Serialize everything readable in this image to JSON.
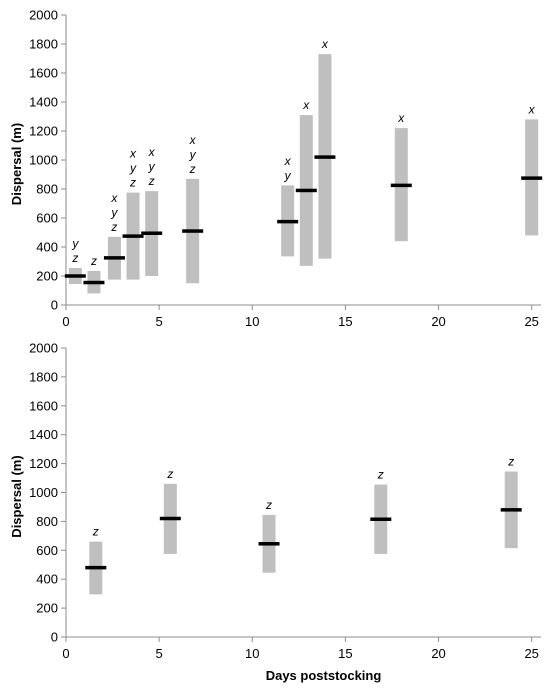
{
  "colors": {
    "range_bar": "#bfbfbf",
    "median": "#000000",
    "axis": "#8c8c8c",
    "text": "#000000"
  },
  "chart_data": [
    {
      "type": "range",
      "panel": "top",
      "xlabel": "",
      "ylabel": "Dispersal (m)",
      "xlim": [
        0,
        25.5
      ],
      "ylim": [
        0,
        2000
      ],
      "xticks": [
        0,
        5,
        10,
        15,
        20,
        25
      ],
      "yticks": [
        0,
        200,
        400,
        600,
        800,
        1000,
        1200,
        1400,
        1600,
        1800,
        2000
      ],
      "grid": false,
      "points": [
        {
          "day": 0.5,
          "low": 145,
          "high": 255,
          "median": 200,
          "letters": [
            "y",
            "z"
          ]
        },
        {
          "day": 1.5,
          "low": 80,
          "high": 235,
          "median": 155,
          "letters": [
            "z"
          ]
        },
        {
          "day": 2.6,
          "low": 175,
          "high": 470,
          "median": 325,
          "letters": [
            "x",
            "y",
            "z"
          ]
        },
        {
          "day": 3.6,
          "low": 175,
          "high": 775,
          "median": 475,
          "letters": [
            "x",
            "y",
            "z"
          ]
        },
        {
          "day": 4.6,
          "low": 200,
          "high": 785,
          "median": 495,
          "letters": [
            "x",
            "y",
            "z"
          ]
        },
        {
          "day": 6.8,
          "low": 150,
          "high": 870,
          "median": 510,
          "letters": [
            "x",
            "y",
            "z"
          ]
        },
        {
          "day": 11.9,
          "low": 335,
          "high": 825,
          "median": 575,
          "letters": [
            "x",
            "y"
          ]
        },
        {
          "day": 12.9,
          "low": 270,
          "high": 1310,
          "median": 790,
          "letters": [
            "x"
          ]
        },
        {
          "day": 13.9,
          "low": 320,
          "high": 1730,
          "median": 1020,
          "letters": [
            "x"
          ]
        },
        {
          "day": 18.0,
          "low": 440,
          "high": 1220,
          "median": 825,
          "letters": [
            "x"
          ]
        },
        {
          "day": 25.0,
          "low": 480,
          "high": 1280,
          "median": 875,
          "letters": [
            "x"
          ]
        }
      ]
    },
    {
      "type": "range",
      "panel": "bottom",
      "xlabel": "Days poststocking",
      "ylabel": "Dispersal (m)",
      "xlim": [
        0,
        25.5
      ],
      "ylim": [
        0,
        2000
      ],
      "xticks": [
        0,
        5,
        10,
        15,
        20,
        25
      ],
      "yticks": [
        0,
        200,
        400,
        600,
        800,
        1000,
        1200,
        1400,
        1600,
        1800,
        2000
      ],
      "grid": false,
      "points": [
        {
          "day": 1.6,
          "low": 295,
          "high": 660,
          "median": 480,
          "letters": [
            "z"
          ]
        },
        {
          "day": 5.6,
          "low": 575,
          "high": 1060,
          "median": 820,
          "letters": [
            "z"
          ]
        },
        {
          "day": 10.9,
          "low": 445,
          "high": 845,
          "median": 645,
          "letters": [
            "z"
          ]
        },
        {
          "day": 16.9,
          "low": 575,
          "high": 1055,
          "median": 815,
          "letters": [
            "z"
          ]
        },
        {
          "day": 23.9,
          "low": 615,
          "high": 1145,
          "median": 880,
          "letters": [
            "z"
          ]
        }
      ]
    }
  ]
}
